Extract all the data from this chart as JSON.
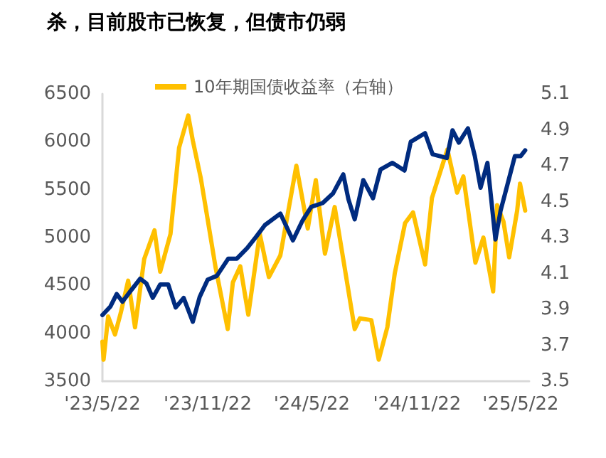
{
  "chart_data": {
    "type": "line",
    "title": "杀，目前股市已恢复，但债市仍弱",
    "legend": "top left",
    "line_style": "solid",
    "marker": "none",
    "grid": false,
    "xlim": [
      "2023-05-22",
      "2025-06-06"
    ],
    "xticks": [
      {
        "value": "2023-05-22",
        "label": "'23/5/22"
      },
      {
        "value": "2023-11-22",
        "label": "'23/11/22"
      },
      {
        "value": "2024-05-22",
        "label": "'24/5/22"
      },
      {
        "value": "2024-11-22",
        "label": "'24/11/22"
      },
      {
        "value": "2025-05-22",
        "label": "'25/5/22"
      }
    ],
    "ylim": [
      3500,
      6500
    ],
    "yticks": [
      3500,
      4000,
      4500,
      5000,
      5500,
      6000,
      6500
    ],
    "y2lim": [
      3.5,
      5.1
    ],
    "y2ticks": [
      3.5,
      3.7,
      3.9,
      4.1,
      4.3,
      4.5,
      4.7,
      4.9,
      5.1
    ],
    "series": [
      {
        "color": "#002b7f",
        "x": [
          "2023-05-22",
          "2023-06-05",
          "2023-06-16",
          "2023-06-26",
          "2023-07-10",
          "2023-07-27",
          "2023-08-07",
          "2023-08-18",
          "2023-08-31",
          "2023-09-14",
          "2023-09-27",
          "2023-10-11",
          "2023-10-27",
          "2023-11-08",
          "2023-11-22",
          "2023-12-08",
          "2023-12-28",
          "2024-01-12",
          "2024-01-30",
          "2024-02-15",
          "2024-03-01",
          "2024-03-28",
          "2024-04-19",
          "2024-05-06",
          "2024-05-21",
          "2024-06-10",
          "2024-06-28",
          "2024-07-16",
          "2024-07-25",
          "2024-08-05",
          "2024-08-20",
          "2024-09-06",
          "2024-09-19",
          "2024-10-10",
          "2024-10-31",
          "2024-11-11",
          "2024-12-06",
          "2024-12-19",
          "2025-01-13",
          "2025-01-23",
          "2025-02-03",
          "2025-02-19",
          "2025-03-03",
          "2025-03-13",
          "2025-03-25",
          "2025-04-08",
          "2025-04-17",
          "2025-04-28",
          "2025-05-12",
          "2025-05-22",
          "2025-05-30"
        ],
        "values": [
          4190,
          4280,
          4410,
          4330,
          4440,
          4570,
          4520,
          4370,
          4510,
          4510,
          4270,
          4370,
          4120,
          4380,
          4560,
          4600,
          4780,
          4780,
          4890,
          5010,
          5130,
          5250,
          4970,
          5180,
          5320,
          5360,
          5460,
          5660,
          5400,
          5190,
          5600,
          5410,
          5710,
          5780,
          5700,
          6000,
          6090,
          5870,
          5830,
          6120,
          5990,
          6140,
          5850,
          5520,
          5780,
          4980,
          5280,
          5530,
          5850,
          5850,
          5910
        ]
      },
      {
        "name": "10年期国债收益率（右轴）",
        "color": "#ffc000",
        "axis": "y2",
        "x": [
          "2023-05-22",
          "2023-05-24",
          "2023-06-01",
          "2023-06-13",
          "2023-06-23",
          "2023-07-06",
          "2023-07-18",
          "2023-08-03",
          "2023-08-21",
          "2023-08-31",
          "2023-09-18",
          "2023-10-03",
          "2023-10-19",
          "2023-10-27",
          "2023-11-10",
          "2023-11-22",
          "2023-12-06",
          "2023-12-27",
          "2024-01-05",
          "2024-01-18",
          "2024-02-01",
          "2024-02-21",
          "2024-03-08",
          "2024-03-28",
          "2024-04-25",
          "2024-05-15",
          "2024-05-29",
          "2024-06-14",
          "2024-07-01",
          "2024-07-17",
          "2024-08-05",
          "2024-08-14",
          "2024-09-03",
          "2024-09-16",
          "2024-10-01",
          "2024-10-14",
          "2024-11-01",
          "2024-11-15",
          "2024-12-06",
          "2024-12-18",
          "2025-01-14",
          "2025-01-31",
          "2025-02-11",
          "2025-03-04",
          "2025-03-18",
          "2025-04-04",
          "2025-04-11",
          "2025-04-22",
          "2025-05-02",
          "2025-05-16",
          "2025-05-21",
          "2025-05-30"
        ],
        "values": [
          3.72,
          3.62,
          3.86,
          3.76,
          3.88,
          4.06,
          3.8,
          4.18,
          4.34,
          4.11,
          4.32,
          4.8,
          4.98,
          4.84,
          4.63,
          4.4,
          4.13,
          3.79,
          4.05,
          4.14,
          3.87,
          4.32,
          4.08,
          4.2,
          4.7,
          4.35,
          4.62,
          4.21,
          4.47,
          4.16,
          3.79,
          3.85,
          3.84,
          3.62,
          3.8,
          4.1,
          4.38,
          4.44,
          4.15,
          4.52,
          4.79,
          4.55,
          4.64,
          4.16,
          4.3,
          4.0,
          4.48,
          4.39,
          4.19,
          4.45,
          4.6,
          4.45
        ]
      }
    ]
  }
}
